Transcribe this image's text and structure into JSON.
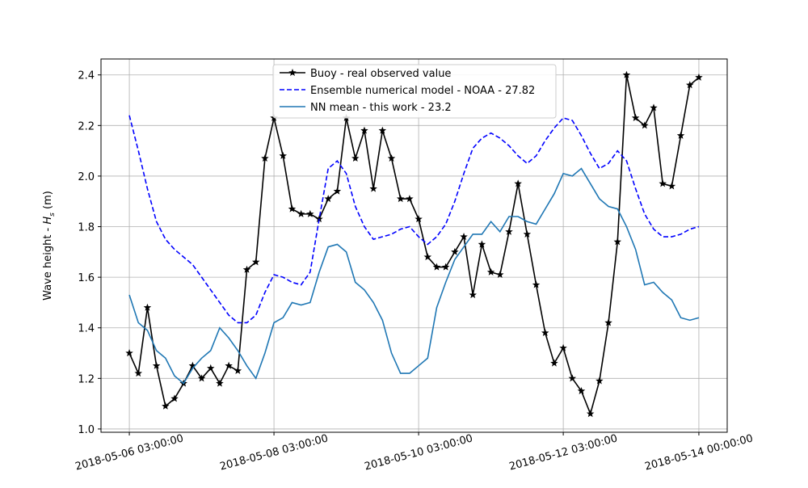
{
  "chart_data": {
    "type": "line",
    "ylabel": {
      "text": "Wave height - ",
      "symbol": "H",
      "subscript": "s",
      "unit": " (m)"
    },
    "x": [
      "2018-05-06 03:00:00",
      "2018-05-06 06:00:00",
      "2018-05-06 09:00:00",
      "2018-05-06 12:00:00",
      "2018-05-06 15:00:00",
      "2018-05-06 18:00:00",
      "2018-05-06 21:00:00",
      "2018-05-07 00:00:00",
      "2018-05-07 03:00:00",
      "2018-05-07 06:00:00",
      "2018-05-07 09:00:00",
      "2018-05-07 12:00:00",
      "2018-05-07 15:00:00",
      "2018-05-07 18:00:00",
      "2018-05-07 21:00:00",
      "2018-05-08 00:00:00",
      "2018-05-08 03:00:00",
      "2018-05-08 06:00:00",
      "2018-05-08 09:00:00",
      "2018-05-08 12:00:00",
      "2018-05-08 15:00:00",
      "2018-05-08 18:00:00",
      "2018-05-08 21:00:00",
      "2018-05-09 00:00:00",
      "2018-05-09 03:00:00",
      "2018-05-09 06:00:00",
      "2018-05-09 09:00:00",
      "2018-05-09 12:00:00",
      "2018-05-09 15:00:00",
      "2018-05-09 18:00:00",
      "2018-05-09 21:00:00",
      "2018-05-10 00:00:00",
      "2018-05-10 03:00:00",
      "2018-05-10 06:00:00",
      "2018-05-10 09:00:00",
      "2018-05-10 12:00:00",
      "2018-05-10 15:00:00",
      "2018-05-10 18:00:00",
      "2018-05-10 21:00:00",
      "2018-05-11 00:00:00",
      "2018-05-11 03:00:00",
      "2018-05-11 06:00:00",
      "2018-05-11 09:00:00",
      "2018-05-11 12:00:00",
      "2018-05-11 15:00:00",
      "2018-05-11 18:00:00",
      "2018-05-11 21:00:00",
      "2018-05-12 00:00:00",
      "2018-05-12 03:00:00",
      "2018-05-12 06:00:00",
      "2018-05-12 09:00:00",
      "2018-05-12 12:00:00",
      "2018-05-12 15:00:00",
      "2018-05-12 18:00:00",
      "2018-05-12 21:00:00",
      "2018-05-13 00:00:00",
      "2018-05-13 03:00:00",
      "2018-05-13 06:00:00",
      "2018-05-13 09:00:00",
      "2018-05-13 12:00:00",
      "2018-05-13 15:00:00",
      "2018-05-13 18:00:00",
      "2018-05-13 21:00:00",
      "2018-05-14 00:00:00"
    ],
    "series": [
      {
        "name": "Buoy - real observed value",
        "color": "#000000",
        "linestyle": "solid",
        "marker": "star",
        "values": [
          1.3,
          1.22,
          1.48,
          1.25,
          1.09,
          1.12,
          1.18,
          1.25,
          1.2,
          1.24,
          1.18,
          1.25,
          1.23,
          1.63,
          1.66,
          2.07,
          2.23,
          2.08,
          1.87,
          1.85,
          1.85,
          1.83,
          1.91,
          1.94,
          2.23,
          2.07,
          2.18,
          1.95,
          2.18,
          2.07,
          1.91,
          1.91,
          1.83,
          1.68,
          1.64,
          1.64,
          1.7,
          1.76,
          1.53,
          1.73,
          1.62,
          1.61,
          1.78,
          1.97,
          1.77,
          1.57,
          1.38,
          1.26,
          1.32,
          1.2,
          1.15,
          1.06,
          1.19,
          1.42,
          1.74,
          2.4,
          2.23,
          2.2,
          2.27,
          1.97,
          1.96,
          2.16,
          2.36,
          2.39
        ]
      },
      {
        "name": "Ensemble numerical model - NOAA - 27.82",
        "color": "#0000ff",
        "linestyle": "dashed",
        "marker": "none",
        "values": [
          2.24,
          2.1,
          1.95,
          1.82,
          1.75,
          1.71,
          1.68,
          1.65,
          1.6,
          1.55,
          1.5,
          1.45,
          1.42,
          1.42,
          1.45,
          1.54,
          1.61,
          1.6,
          1.58,
          1.57,
          1.62,
          1.83,
          2.03,
          2.06,
          2.01,
          1.88,
          1.8,
          1.75,
          1.76,
          1.77,
          1.79,
          1.8,
          1.76,
          1.73,
          1.76,
          1.81,
          1.9,
          2.01,
          2.11,
          2.15,
          2.17,
          2.15,
          2.12,
          2.08,
          2.05,
          2.08,
          2.14,
          2.19,
          2.23,
          2.22,
          2.16,
          2.09,
          2.03,
          2.05,
          2.1,
          2.06,
          1.95,
          1.85,
          1.79,
          1.76,
          1.76,
          1.77,
          1.79,
          1.8
        ]
      },
      {
        "name": "NN mean - this work - 23.2",
        "color": "#1f77b4",
        "linestyle": "solid",
        "marker": "none",
        "values": [
          1.53,
          1.42,
          1.39,
          1.31,
          1.28,
          1.21,
          1.18,
          1.24,
          1.28,
          1.31,
          1.4,
          1.36,
          1.31,
          1.25,
          1.2,
          1.3,
          1.42,
          1.44,
          1.5,
          1.49,
          1.5,
          1.62,
          1.72,
          1.73,
          1.7,
          1.58,
          1.55,
          1.5,
          1.43,
          1.3,
          1.22,
          1.22,
          1.25,
          1.28,
          1.48,
          1.58,
          1.67,
          1.72,
          1.77,
          1.77,
          1.82,
          1.78,
          1.84,
          1.84,
          1.82,
          1.81,
          1.87,
          1.93,
          2.01,
          2.0,
          2.03,
          1.97,
          1.91,
          1.88,
          1.87,
          1.8,
          1.71,
          1.57,
          1.58,
          1.54,
          1.51,
          1.44,
          1.43,
          1.44
        ]
      }
    ],
    "xlim": [
      "2018-05-05 17:36:00",
      "2018-05-14 09:24:00"
    ],
    "xticks": [
      "2018-05-06 03:00:00",
      "2018-05-08 03:00:00",
      "2018-05-10 03:00:00",
      "2018-05-12 03:00:00",
      "2018-05-14 00:00:00"
    ],
    "ylim": [
      0.987,
      2.463
    ],
    "yticks": [
      {
        "value": 1.0,
        "label": "1.0"
      },
      {
        "value": 1.2,
        "label": "1.2"
      },
      {
        "value": 1.4,
        "label": "1.4"
      },
      {
        "value": 1.6,
        "label": "1.6"
      },
      {
        "value": 1.8,
        "label": "1.8"
      },
      {
        "value": 2.0,
        "label": "2.0"
      },
      {
        "value": 2.2,
        "label": "2.2"
      },
      {
        "value": 2.4,
        "label": "2.4"
      }
    ],
    "grid": true,
    "legend": "upper center"
  }
}
